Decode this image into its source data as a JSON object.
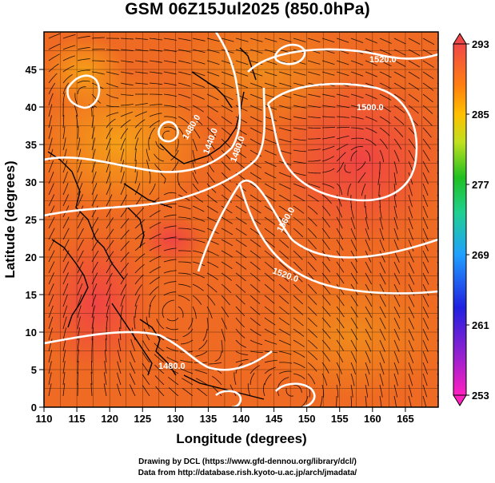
{
  "title": "GSM 06Z15Jul2025 (850.0hPa)",
  "xaxis": {
    "label": "Longitude (degrees)",
    "range": [
      110,
      170
    ],
    "ticks": [
      "110",
      "115",
      "120",
      "125",
      "130",
      "135",
      "140",
      "145",
      "150",
      "155",
      "160",
      "165"
    ]
  },
  "yaxis": {
    "label": "Latitude  (degrees)",
    "range": [
      0,
      50
    ],
    "ticks": [
      "0",
      "5",
      "10",
      "15",
      "20",
      "25",
      "30",
      "35",
      "40",
      "45"
    ]
  },
  "colorbar": {
    "labels": [
      "293",
      "285",
      "277",
      "269",
      "261",
      "253"
    ],
    "range": [
      253,
      293
    ],
    "colors": [
      "#ff20c0",
      "#2020e0",
      "#20a0ff",
      "#20d080",
      "#20c020",
      "#c0e020",
      "#ffb000",
      "#ff7010",
      "#f04040"
    ]
  },
  "contours": [
    {
      "label": "1520.0",
      "color": "#ffffff"
    },
    {
      "label": "1500.0",
      "color": "#ffffff"
    },
    {
      "label": "1440.0",
      "color": "#ffffff"
    },
    {
      "label": "1480.0",
      "color": "#ffffff"
    },
    {
      "label": "1560.0",
      "color": "#ffffff"
    },
    {
      "label": "1520.0",
      "color": "#ffffff"
    },
    {
      "label": "1480.0",
      "color": "#ffffff"
    },
    {
      "label": "1480.0",
      "color": "#ffffff"
    }
  ],
  "credits": {
    "line1": "Drawing by DCL (https://www.gfd-dennou.org/library/dcl/)",
    "line2": "Data from http://database.rish.kyoto-u.ac.jp/arch/jmadata/"
  }
}
